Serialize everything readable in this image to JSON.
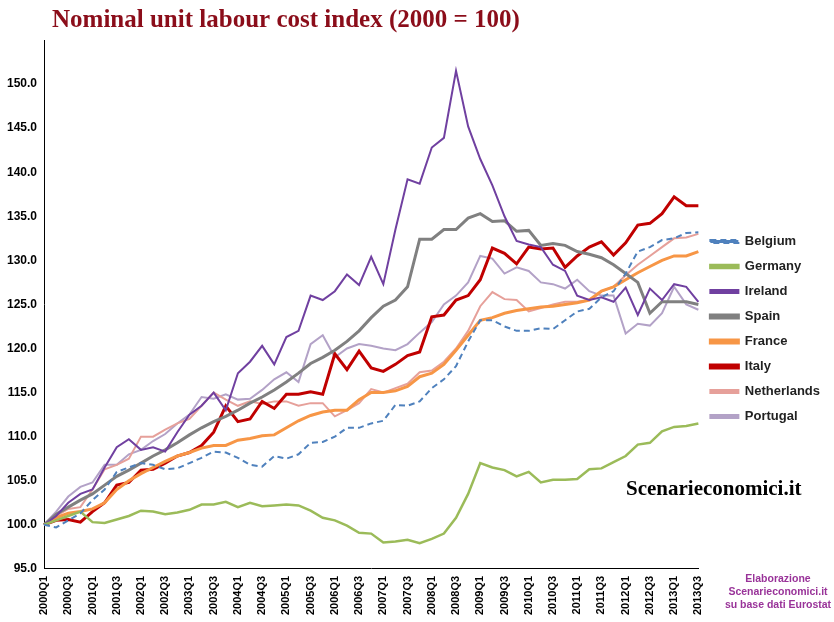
{
  "chart_data": {
    "type": "line",
    "title": "Nominal unit labour cost index (2000 = 100)",
    "annotations": [
      "Scenarieconomici.it",
      "Elaborazione Scenarieconomici.it su base dati Eurostat"
    ],
    "categories": [
      "2000Q1",
      null,
      "2000Q3",
      null,
      "2001Q1",
      null,
      "2001Q3",
      null,
      "2002Q1",
      null,
      "2002Q3",
      null,
      "2003Q1",
      null,
      "2003Q3",
      null,
      "2004Q1",
      null,
      "2004Q3",
      null,
      "2005Q1",
      null,
      "2005Q3",
      null,
      "2006Q1",
      null,
      "2006Q3",
      null,
      "2007Q1",
      null,
      "2007Q3",
      null,
      "2008Q1",
      null,
      "2008Q3",
      null,
      "2009Q1",
      null,
      "2009Q3",
      null,
      "2010Q1",
      null,
      "2010Q3",
      null,
      "2011Q1",
      null,
      "2011Q3",
      null,
      "2012Q1",
      null,
      "2012Q3",
      null,
      "2013Q1",
      null,
      "2013Q3"
    ],
    "series": [
      {
        "name": "Belgium",
        "color": "#4f81bd",
        "line_style": "dashed",
        "values": [
          100.0,
          99.7,
          100.5,
          101.3,
          102.8,
          104.0,
          106.0,
          106.5,
          107.0,
          106.8,
          106.3,
          106.4,
          107.0,
          107.6,
          108.3,
          108.2,
          107.6,
          106.8,
          106.6,
          107.8,
          107.5,
          108.0,
          109.3,
          109.4,
          110.0,
          111.0,
          111.0,
          111.5,
          111.8,
          113.6,
          113.5,
          114.0,
          115.5,
          116.5,
          118.0,
          120.8,
          123.2,
          123.2,
          122.5,
          122.0,
          122.0,
          122.3,
          122.2,
          123.2,
          124.2,
          124.5,
          125.8,
          126.5,
          128.5,
          131.0,
          131.5,
          132.3,
          132.5,
          133.1,
          133.2
        ]
      },
      {
        "name": "Germany",
        "color": "#9bbb59",
        "line_style": "solid",
        "values": [
          100.0,
          100.5,
          101.0,
          101.5,
          100.3,
          100.2,
          100.6,
          101.0,
          101.6,
          101.5,
          101.2,
          101.4,
          101.7,
          102.3,
          102.3,
          102.6,
          102.0,
          102.5,
          102.1,
          102.2,
          102.3,
          102.2,
          101.6,
          100.8,
          100.5,
          99.9,
          99.1,
          99.0,
          98.0,
          98.1,
          98.3,
          97.9,
          98.4,
          99.0,
          100.8,
          103.5,
          107.0,
          106.5,
          106.2,
          105.5,
          106.0,
          104.8,
          105.1,
          105.1,
          105.2,
          106.3,
          106.4,
          107.1,
          107.8,
          109.1,
          109.3,
          110.6,
          111.1,
          111.2,
          111.5
        ]
      },
      {
        "name": "Ireland",
        "color": "#7040a0",
        "line_style": "solid",
        "values": [
          100.0,
          101.0,
          102.5,
          103.5,
          104.0,
          106.5,
          108.8,
          109.7,
          108.5,
          108.8,
          108.3,
          110.5,
          112.5,
          113.5,
          115.0,
          113.0,
          117.2,
          118.5,
          120.3,
          118.2,
          121.3,
          122.0,
          126.0,
          125.5,
          126.5,
          128.4,
          127.2,
          130.4,
          127.3,
          133.5,
          139.2,
          138.7,
          142.8,
          143.9,
          151.5,
          145.2,
          141.5,
          138.5,
          135.0,
          132.2,
          131.8,
          131.5,
          129.5,
          128.8,
          126.0,
          125.5,
          125.8,
          125.3,
          126.9,
          123.8,
          126.8,
          125.5,
          127.3,
          127.0,
          125.3
        ]
      },
      {
        "name": "Spain",
        "color": "#808080",
        "line_style": "solid",
        "values": [
          100.0,
          101.2,
          102.0,
          102.8,
          103.5,
          104.5,
          105.5,
          106.2,
          107.0,
          107.8,
          108.5,
          109.3,
          110.2,
          111.0,
          111.7,
          112.3,
          113.0,
          113.8,
          114.5,
          115.3,
          116.2,
          117.2,
          118.3,
          119.0,
          119.8,
          120.8,
          122.0,
          123.5,
          124.8,
          125.5,
          127.0,
          132.4,
          132.4,
          133.5,
          133.5,
          134.8,
          135.3,
          134.4,
          134.5,
          133.3,
          133.4,
          131.7,
          131.9,
          131.7,
          131.0,
          130.7,
          130.3,
          129.5,
          128.5,
          127.5,
          124.0,
          125.3,
          125.3,
          125.3,
          125.0
        ]
      },
      {
        "name": "France",
        "color": "#f79646",
        "line_style": "solid",
        "values": [
          100.0,
          100.8,
          101.3,
          101.5,
          101.8,
          102.5,
          104.0,
          105.0,
          105.8,
          106.5,
          107.2,
          107.8,
          108.2,
          108.7,
          109.0,
          109.0,
          109.6,
          109.8,
          110.1,
          110.2,
          111.0,
          111.8,
          112.4,
          112.8,
          113.0,
          113.0,
          114.2,
          115.0,
          115.0,
          115.2,
          115.7,
          116.8,
          117.2,
          118.2,
          119.8,
          121.5,
          123.2,
          123.5,
          124.0,
          124.3,
          124.5,
          124.7,
          124.8,
          125.0,
          125.2,
          125.5,
          126.5,
          127.0,
          127.8,
          128.6,
          129.3,
          130.0,
          130.5,
          130.5,
          131.0
        ]
      },
      {
        "name": "Italy",
        "color": "#c00000",
        "line_style": "solid",
        "values": [
          100.0,
          100.5,
          100.6,
          100.3,
          101.5,
          102.5,
          104.5,
          104.8,
          106.2,
          106.3,
          107.0,
          107.8,
          108.2,
          109.0,
          110.5,
          113.5,
          111.7,
          112.0,
          114.0,
          113.2,
          114.8,
          114.8,
          115.1,
          114.8,
          119.4,
          117.6,
          119.7,
          117.8,
          117.4,
          118.2,
          119.2,
          119.6,
          123.6,
          123.8,
          125.5,
          126.0,
          127.8,
          131.4,
          130.8,
          129.6,
          131.5,
          131.3,
          131.4,
          129.2,
          130.5,
          131.5,
          132.1,
          130.6,
          132.0,
          134.0,
          134.2,
          135.3,
          137.2,
          136.2,
          136.2
        ]
      },
      {
        "name": "Netherlands",
        "color": "#e6a09a",
        "line_style": "solid",
        "values": [
          100.0,
          101.0,
          101.8,
          102.0,
          104.0,
          106.3,
          106.8,
          107.5,
          110.0,
          110.0,
          110.8,
          111.5,
          112.0,
          113.5,
          115.0,
          114.2,
          113.5,
          114.0,
          113.7,
          114.0,
          114.0,
          113.5,
          113.8,
          113.8,
          112.3,
          113.0,
          113.8,
          115.4,
          115.0,
          115.5,
          116.0,
          117.3,
          117.5,
          118.5,
          120.0,
          122.0,
          124.8,
          126.4,
          125.6,
          125.5,
          124.2,
          124.6,
          125.0,
          125.3,
          125.3,
          125.5,
          126.5,
          127.0,
          128.3,
          129.5,
          130.5,
          131.5,
          132.5,
          132.6,
          133.0
        ]
      },
      {
        "name": "Portugal",
        "color": "#b3a2c7",
        "line_style": "solid",
        "values": [
          100.0,
          101.5,
          103.2,
          104.3,
          104.8,
          106.8,
          106.8,
          108.0,
          108.5,
          109.5,
          110.3,
          111.5,
          112.5,
          114.5,
          114.3,
          114.8,
          114.2,
          114.3,
          115.3,
          116.5,
          117.3,
          116.2,
          120.5,
          121.5,
          119.0,
          120.0,
          120.5,
          120.3,
          120.0,
          119.8,
          120.5,
          121.8,
          123.0,
          125.0,
          126.0,
          127.5,
          130.5,
          130.2,
          128.5,
          129.2,
          128.8,
          127.5,
          127.3,
          126.8,
          127.8,
          126.5,
          126.0,
          126.0,
          121.7,
          122.8,
          122.6,
          124.0,
          127.0,
          125.0,
          124.4
        ]
      }
    ],
    "ylim": [
      95,
      155
    ],
    "yticks": [
      {
        "value": 95,
        "label": "95.0"
      },
      {
        "value": 100,
        "label": "100.0"
      },
      {
        "value": 105,
        "label": "105.0"
      },
      {
        "value": 110,
        "label": "110.0"
      },
      {
        "value": 115,
        "label": "115.0"
      },
      {
        "value": 120,
        "label": "120.0"
      },
      {
        "value": 125,
        "label": "125.0"
      },
      {
        "value": 130,
        "label": "130.0"
      },
      {
        "value": 135,
        "label": "135.0"
      },
      {
        "value": 140,
        "label": "140.0"
      },
      {
        "value": 145,
        "label": "145.0"
      },
      {
        "value": 150,
        "label": "150.0"
      }
    ],
    "grid": false,
    "legend": "right"
  }
}
